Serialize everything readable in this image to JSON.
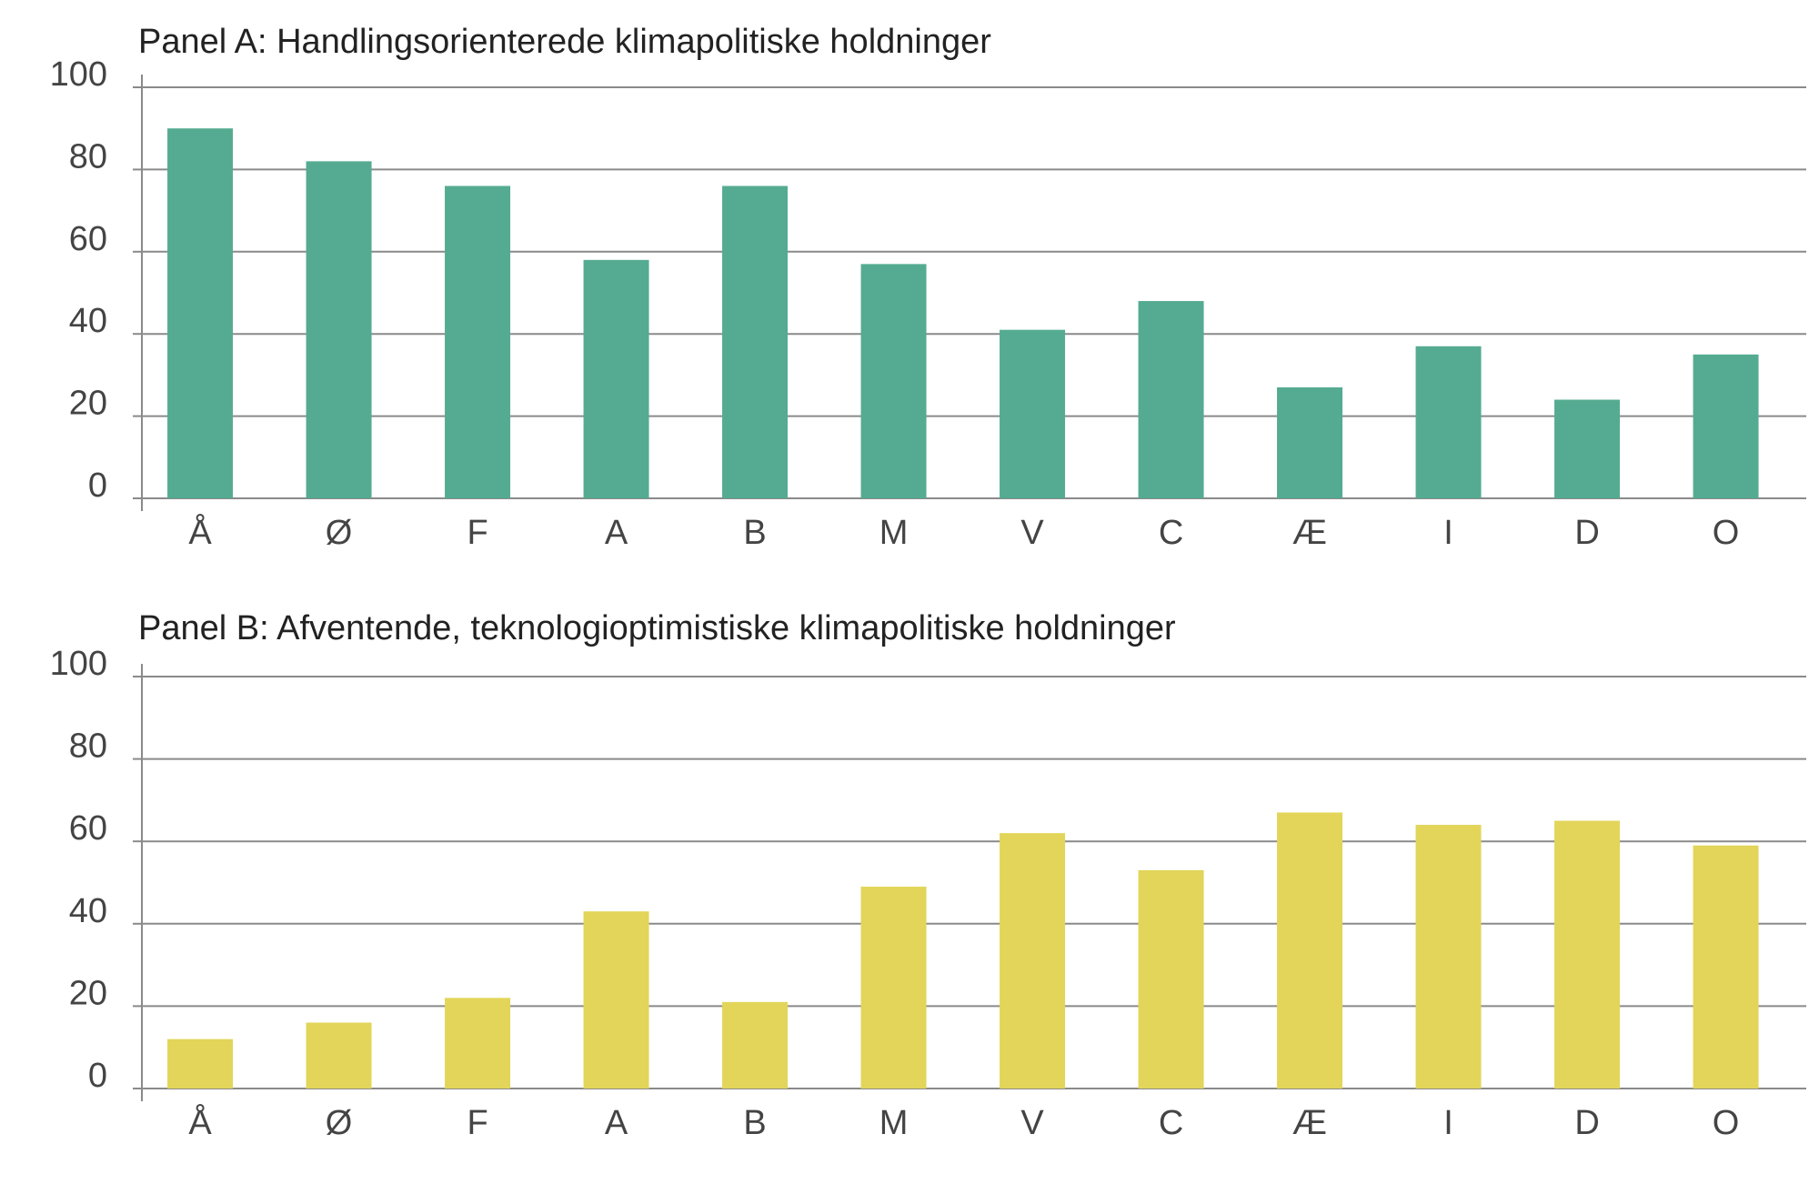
{
  "chart_data": [
    {
      "type": "bar",
      "title": "Panel A: Handlingsorienterede klimapolitiske holdninger",
      "categories": [
        "Å",
        "Ø",
        "F",
        "A",
        "B",
        "M",
        "V",
        "C",
        "Æ",
        "I",
        "D",
        "O"
      ],
      "values": [
        90,
        82,
        76,
        58,
        76,
        57,
        41,
        48,
        27,
        37,
        24,
        35
      ],
      "color": "#55ab91",
      "ylim": [
        0,
        100
      ],
      "yticks": [
        0,
        20,
        40,
        60,
        80,
        100
      ],
      "grid": true
    },
    {
      "type": "bar",
      "title": "Panel B: Afventende, teknologioptimistiske klimapolitiske holdninger",
      "categories": [
        "Å",
        "Ø",
        "F",
        "A",
        "B",
        "M",
        "V",
        "C",
        "Æ",
        "I",
        "D",
        "O"
      ],
      "values": [
        12,
        16,
        22,
        43,
        21,
        49,
        62,
        53,
        67,
        64,
        65,
        59
      ],
      "color": "#e2d55a",
      "ylim": [
        0,
        100
      ],
      "yticks": [
        0,
        20,
        40,
        60,
        80,
        100
      ],
      "grid": true
    }
  ]
}
